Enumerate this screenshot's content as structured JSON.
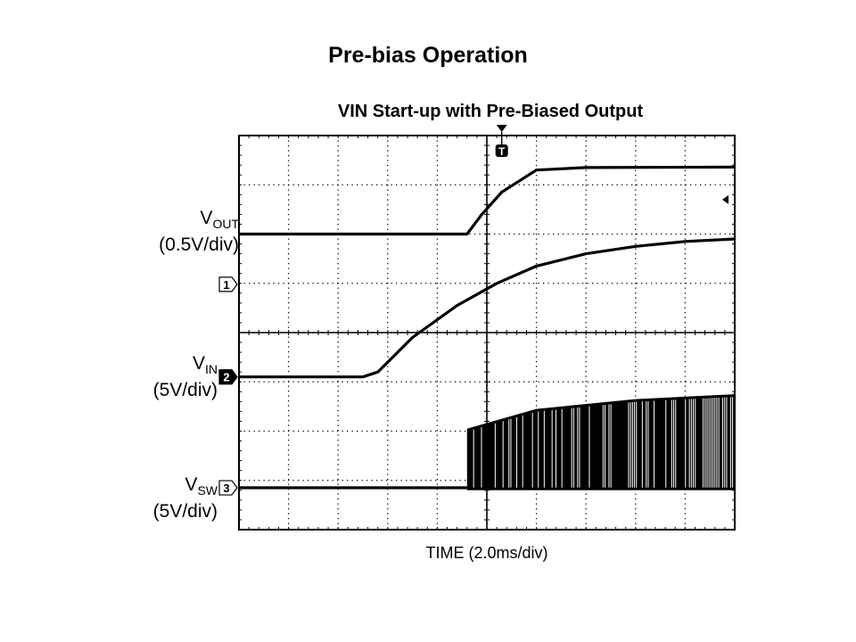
{
  "slide": {
    "title": "Pre-bias Operation"
  },
  "chart_data": {
    "type": "line",
    "title": "VIN Start-up with Pre-Biased Output",
    "xlabel": "TIME (2.0ms/div)",
    "grid": true,
    "x_divisions": 10,
    "y_divisions": 8,
    "xlim": [
      0,
      10
    ],
    "ylim": [
      0,
      8
    ],
    "trigger_marker": "T",
    "trigger_x_div": 5.3,
    "series": [
      {
        "channel": "1",
        "name_main": "V",
        "name_sub": "OUT",
        "scale": "(0.5V/div)",
        "points": [
          [
            0,
            6.0
          ],
          [
            4.6,
            6.0
          ],
          [
            4.9,
            6.4
          ],
          [
            5.3,
            6.85
          ],
          [
            6.0,
            7.3
          ],
          [
            7.0,
            7.35
          ],
          [
            10.0,
            7.36
          ]
        ]
      },
      {
        "channel": "2",
        "name_main": "V",
        "name_sub": "IN",
        "scale": "(5V/div)",
        "points": [
          [
            0,
            3.1
          ],
          [
            2.5,
            3.1
          ],
          [
            2.8,
            3.2
          ],
          [
            3.5,
            3.9
          ],
          [
            4.4,
            4.55
          ],
          [
            5.2,
            5.0
          ],
          [
            6.0,
            5.35
          ],
          [
            7.0,
            5.6
          ],
          [
            8.0,
            5.75
          ],
          [
            9.0,
            5.85
          ],
          [
            10.0,
            5.9
          ]
        ]
      },
      {
        "channel": "3",
        "name_main": "V",
        "name_sub": "SW",
        "scale": "(5V/div)",
        "switching_start_div": 4.6,
        "points": [
          [
            0,
            0.85
          ],
          [
            4.6,
            0.85
          ]
        ],
        "switching_envelope_high": [
          [
            4.6,
            2.05
          ],
          [
            6.0,
            2.45
          ],
          [
            8.0,
            2.65
          ],
          [
            10.0,
            2.75
          ]
        ],
        "switching_envelope_low": [
          [
            4.6,
            0.8
          ],
          [
            10.0,
            0.8
          ]
        ]
      }
    ]
  }
}
